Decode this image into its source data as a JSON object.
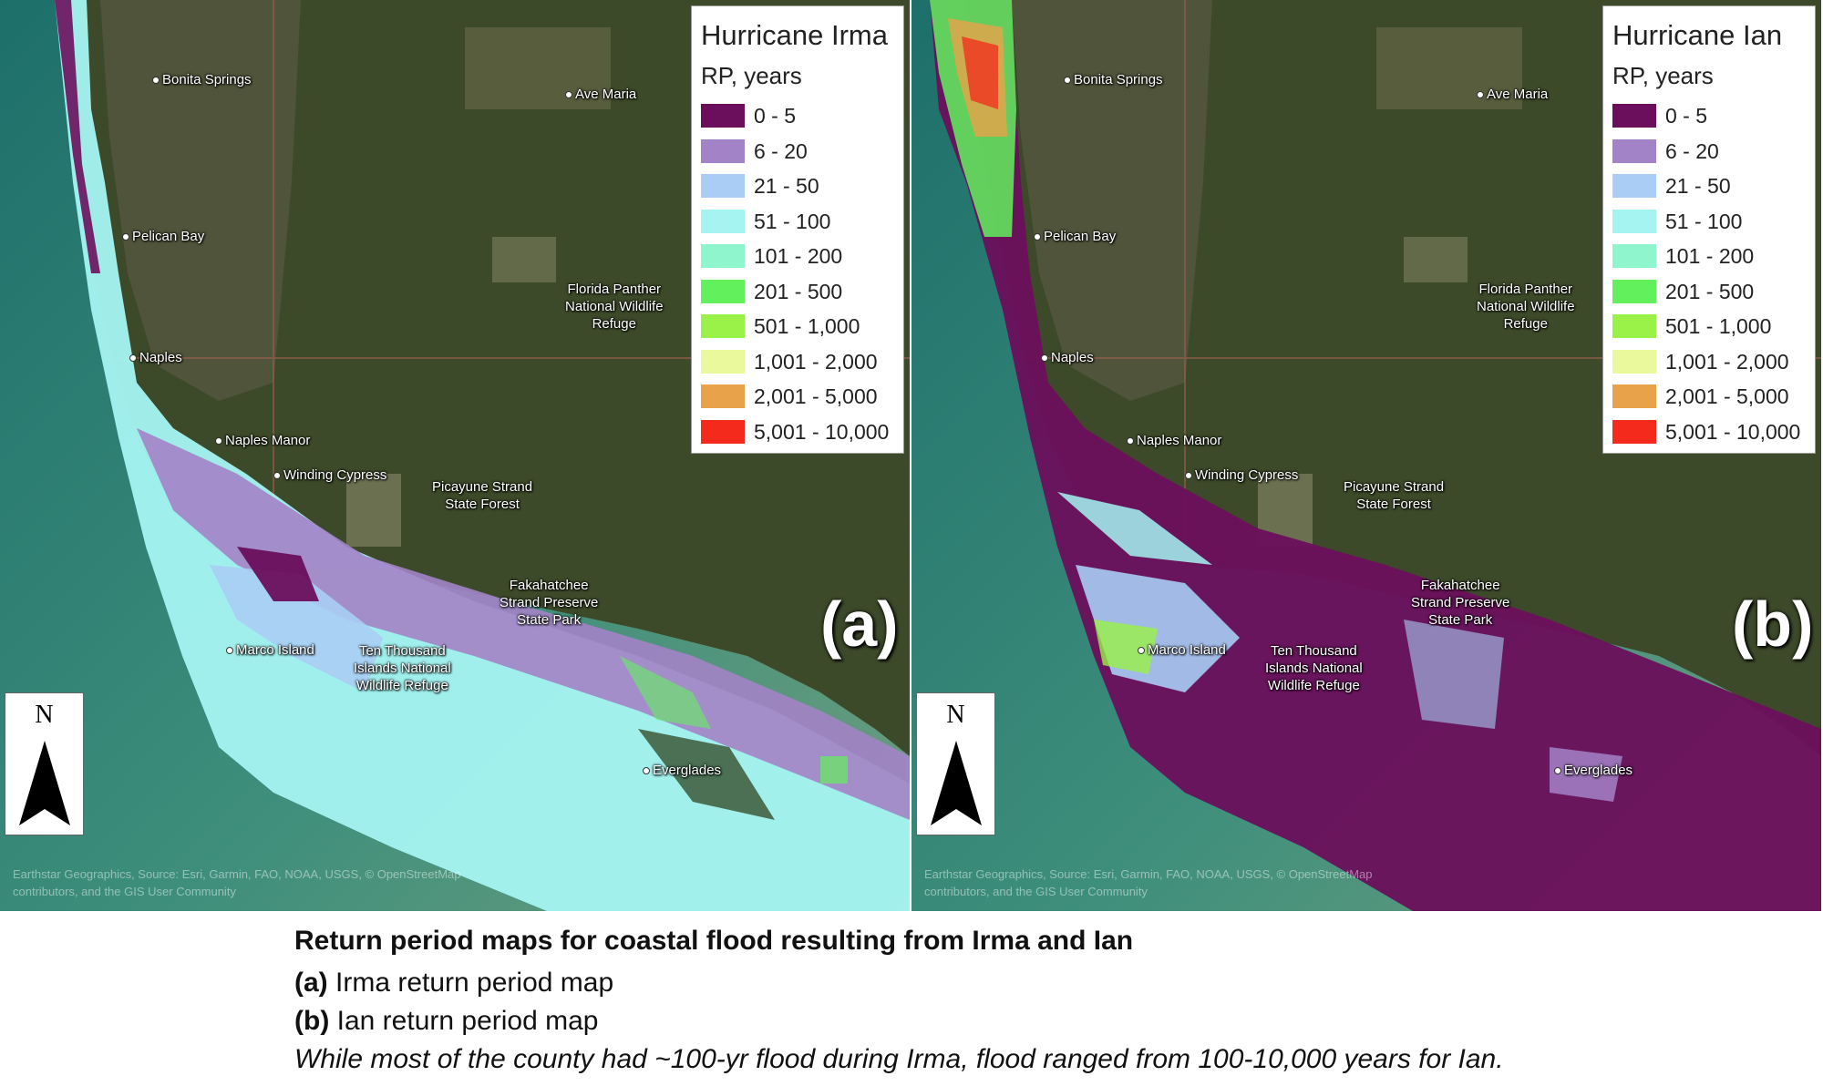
{
  "legend_classes": [
    {
      "label": "0 - 5",
      "color": "#6b0f5c"
    },
    {
      "label": "6 - 20",
      "color": "#a383c7"
    },
    {
      "label": "21 - 50",
      "color": "#a9cdf5"
    },
    {
      "label": "51 - 100",
      "color": "#a5f4f2"
    },
    {
      "label": "101 - 200",
      "color": "#8ff5cc"
    },
    {
      "label": "201 - 500",
      "color": "#63f05d"
    },
    {
      "label": "501 - 1,000",
      "color": "#9af147"
    },
    {
      "label": "1,001 - 2,000",
      "color": "#eaf99c"
    },
    {
      "label": "2,001 - 5,000",
      "color": "#e8a24a"
    },
    {
      "label": "5,001 - 10,000",
      "color": "#f32a1c"
    }
  ],
  "legend_subtitle": "RP, years",
  "panels": [
    {
      "id": "a",
      "legend_title": "Hurricane Irma",
      "letter": "(a)"
    },
    {
      "id": "b",
      "legend_title": "Hurricane Ian",
      "letter": "(b)"
    }
  ],
  "place_labels": {
    "bonita_springs": "Bonita Springs",
    "ave_maria": "Ave Maria",
    "pelican_bay": "Pelican Bay",
    "florida_panther": [
      "Florida Panther",
      "National Wildlife",
      "Refuge"
    ],
    "naples": "Naples",
    "naples_manor": "Naples Manor",
    "winding_cypress": "Winding Cypress",
    "picayune": [
      "Picayune Strand",
      "State Forest"
    ],
    "fakahatchee": [
      "Fakahatchee",
      "Strand Preserve",
      "State Park"
    ],
    "marco_island": "Marco Island",
    "ten_thousand": [
      "Ten Thousand",
      "Islands National",
      "Wildlife Refuge"
    ],
    "everglades": "Everglades"
  },
  "north_label": "N",
  "attribution": [
    "Earthstar Geographics, Source: Esri, Garmin, FAO, NOAA, USGS, © OpenStreetMap",
    "contributors, and the GIS User Community"
  ],
  "caption": {
    "title": "Return period maps for coastal flood resulting from Irma and Ian",
    "a_tag": "(a)",
    "a_text": " Irma return period map",
    "b_tag": "(b)",
    "b_text": " Ian return period map",
    "note": "While most of the county had ~100-yr flood during Irma, flood ranged from 100-10,000 years for Ian."
  }
}
